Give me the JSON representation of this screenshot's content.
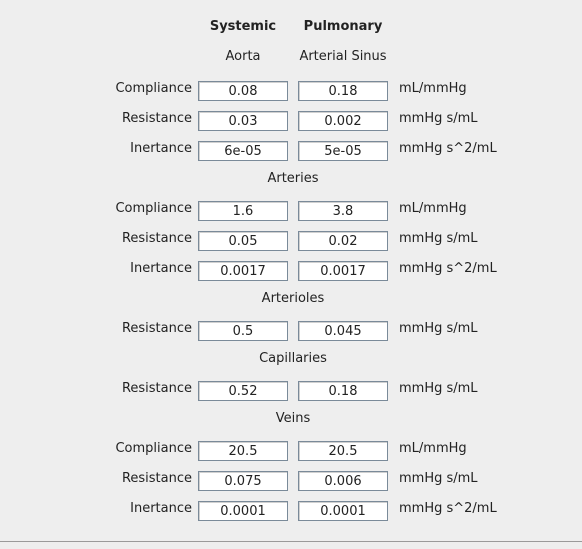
{
  "headers": {
    "systemic": "Systemic",
    "pulmonary": "Pulmonary",
    "systemic_sub": "Aorta",
    "pulmonary_sub": "Arterial Sinus"
  },
  "sections": {
    "arteries": "Arteries",
    "arterioles": "Arterioles",
    "capillaries": "Capillaries",
    "veins": "Veins"
  },
  "rows": {
    "aorta_compliance": {
      "label": "Compliance",
      "systemic": "0.08",
      "pulmonary": "0.18",
      "unit": "mL/mmHg"
    },
    "aorta_resistance": {
      "label": "Resistance",
      "systemic": "0.03",
      "pulmonary": "0.002",
      "unit": "mmHg s/mL"
    },
    "aorta_inertance": {
      "label": "Inertance",
      "systemic": "6e-05",
      "pulmonary": "5e-05",
      "unit": "mmHg s^2/mL"
    },
    "arteries_compliance": {
      "label": "Compliance",
      "systemic": "1.6",
      "pulmonary": "3.8",
      "unit": "mL/mmHg"
    },
    "arteries_resistance": {
      "label": "Resistance",
      "systemic": "0.05",
      "pulmonary": "0.02",
      "unit": "mmHg s/mL"
    },
    "arteries_inertance": {
      "label": "Inertance",
      "systemic": "0.0017",
      "pulmonary": "0.0017",
      "unit": "mmHg s^2/mL"
    },
    "arterioles_resistance": {
      "label": "Resistance",
      "systemic": "0.5",
      "pulmonary": "0.045",
      "unit": "mmHg s/mL"
    },
    "capillaries_resistance": {
      "label": "Resistance",
      "systemic": "0.52",
      "pulmonary": "0.18",
      "unit": "mmHg s/mL"
    },
    "veins_compliance": {
      "label": "Compliance",
      "systemic": "20.5",
      "pulmonary": "20.5",
      "unit": "mL/mmHg"
    },
    "veins_resistance": {
      "label": "Resistance",
      "systemic": "0.075",
      "pulmonary": "0.006",
      "unit": "mmHg s/mL"
    },
    "veins_inertance": {
      "label": "Inertance",
      "systemic": "0.0001",
      "pulmonary": "0.0001",
      "unit": "mmHg s^2/mL"
    }
  }
}
